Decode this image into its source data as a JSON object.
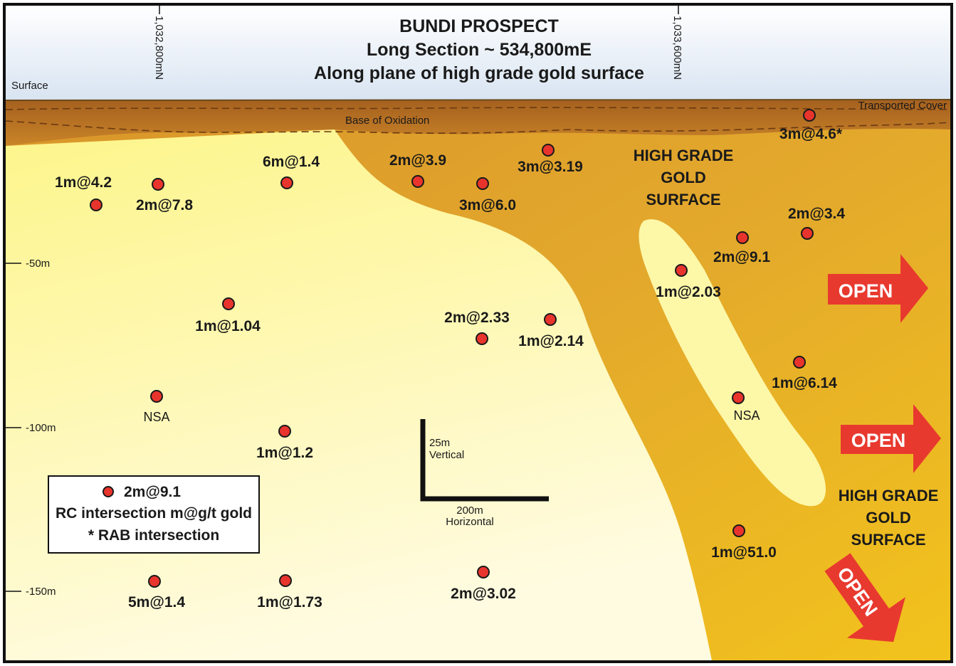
{
  "title": {
    "line1": "BUNDI PROSPECT",
    "line2": "Long Section ~ 534,800mE",
    "line3": "Along plane of high grade gold surface"
  },
  "northings": [
    "1,032,800mN",
    "1,033,600mN"
  ],
  "surface_label": "Surface",
  "transported_cover_label": "Transported Cover",
  "oxidation_label": "Base of Oxidation",
  "depth_ticks": [
    "-50m",
    "-100m",
    "-150m"
  ],
  "intersections": [
    {
      "label": "1m@4.2"
    },
    {
      "label": "2m@7.8"
    },
    {
      "label": "6m@1.4"
    },
    {
      "label": "2m@3.9"
    },
    {
      "label": "3m@6.0"
    },
    {
      "label": "3m@3.19"
    },
    {
      "label": "3m@4.6*"
    },
    {
      "label": "2m@3.4"
    },
    {
      "label": "2m@9.1"
    },
    {
      "label": "1m@2.03"
    },
    {
      "label": "1m@1.04"
    },
    {
      "label": "2m@2.33"
    },
    {
      "label": "1m@2.14"
    },
    {
      "label": "1m@6.14"
    },
    {
      "label": "NSA"
    },
    {
      "label": "NSA"
    },
    {
      "label": "1m@1.2"
    },
    {
      "label": "1m@51.0"
    },
    {
      "label": "5m@1.4"
    },
    {
      "label": "1m@1.73"
    },
    {
      "label": "2m@3.02"
    }
  ],
  "zones": {
    "upper": [
      "HIGH GRADE",
      "GOLD",
      "SURFACE"
    ],
    "lower": [
      "HIGH GRADE",
      "GOLD",
      "SURFACE"
    ]
  },
  "open_label": "OPEN",
  "scale": {
    "vertical_value": "25m",
    "vertical_label": "Vertical",
    "horizontal_value": "200m",
    "horizontal_label": "Horizontal"
  },
  "legend": {
    "sample": "2m@9.1",
    "line1": "RC intersection m@g/t gold",
    "line2": "* RAB intersection"
  },
  "colors": {
    "pale_yellow": "#fdf9b2",
    "gold": "#e0a52a",
    "cover_brown": "#b66b22",
    "open_arrow": "#e8392f",
    "dot": "#e8342c"
  }
}
